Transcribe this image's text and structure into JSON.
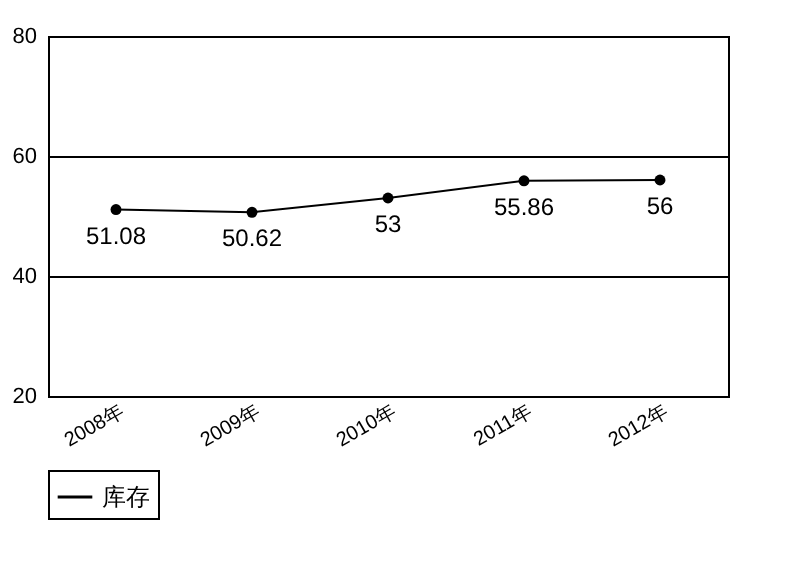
{
  "chart_data": {
    "type": "line",
    "categories": [
      "2008年",
      "2009年",
      "2010年",
      "2011年",
      "2012年"
    ],
    "series": [
      {
        "name": "库存",
        "color": "#000000",
        "values": [
          51.08,
          50.62,
          53,
          55.86,
          56
        ]
      }
    ],
    "ylim": [
      20,
      80
    ],
    "yticks": [
      20,
      40,
      60,
      80
    ],
    "grid": "y",
    "legend": "bottom",
    "marker": "circle",
    "data_labels": true
  }
}
